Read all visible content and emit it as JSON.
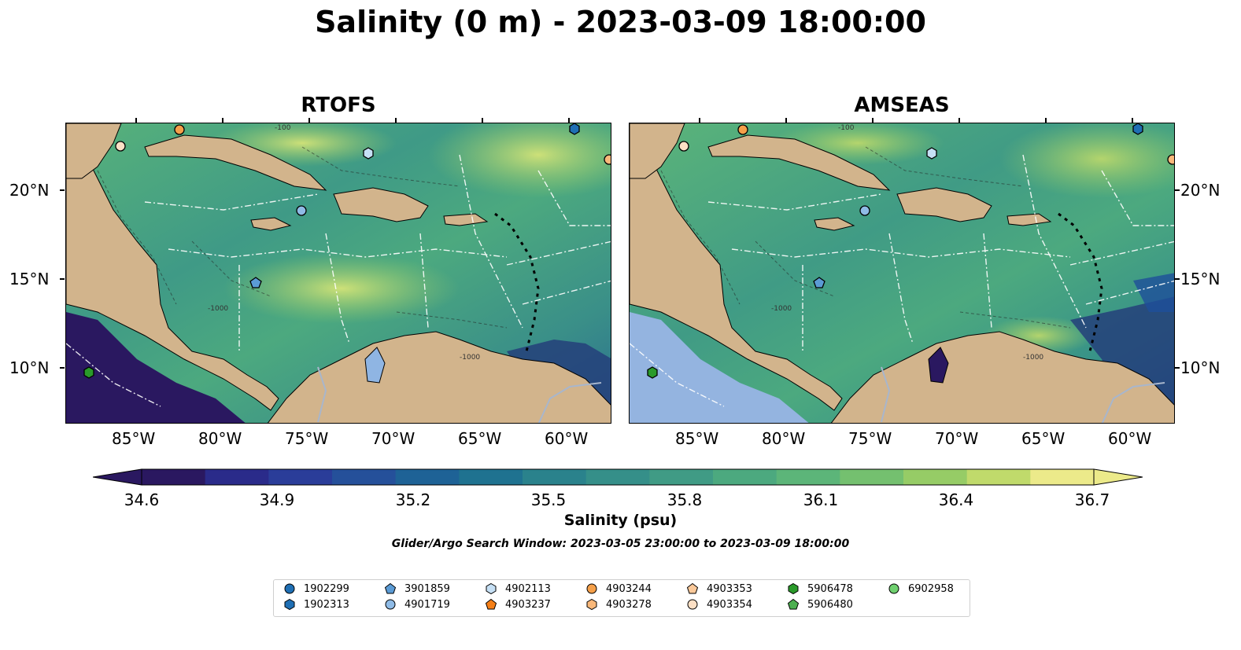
{
  "title": "Salinity (0 m) - 2023-03-09 18:00:00",
  "panels": [
    {
      "title": "RTOFS"
    },
    {
      "title": "AMSEAS"
    }
  ],
  "map": {
    "lon_range": [
      -89,
      -58
    ],
    "lat_range": [
      7,
      24
    ],
    "x_ticks": [
      "85°W",
      "80°W",
      "75°W",
      "70°W",
      "65°W",
      "60°W"
    ],
    "y_ticks": [
      "20°N",
      "15°N",
      "10°N"
    ],
    "land_color": "#d2b48c",
    "river_color": "#a8b6cc",
    "contour_labels": [
      "-100",
      "-1000"
    ]
  },
  "colorbar": {
    "label": "Salinity (psu)",
    "min": 34.6,
    "max": 36.7,
    "ticks": [
      "34.6",
      "34.9",
      "35.2",
      "35.5",
      "35.8",
      "36.1",
      "36.4",
      "36.7"
    ],
    "colors": [
      "#2a1860",
      "#2a2b8a",
      "#2a3d99",
      "#25509a",
      "#1e6296",
      "#1f7290",
      "#2a828c",
      "#358f89",
      "#409b85",
      "#4ca97f",
      "#5cb579",
      "#74c06f",
      "#96cc66",
      "#c0da6b",
      "#ecea8a"
    ]
  },
  "search_window": "Glider/Argo Search Window: 2023-03-05 23:00:00 to 2023-03-09 18:00:00",
  "legend": {
    "items": [
      {
        "id": "1902299",
        "shape": "circle",
        "color": "#1f6fb4"
      },
      {
        "id": "1902313",
        "shape": "hexagon",
        "color": "#1f6fb4"
      },
      {
        "id": "3901859",
        "shape": "pentagon",
        "color": "#5b9bd5"
      },
      {
        "id": "4901719",
        "shape": "circle",
        "color": "#8fbbe6"
      },
      {
        "id": "4902113",
        "shape": "hexagon",
        "color": "#c6e0f5"
      },
      {
        "id": "4903237",
        "shape": "pentagon",
        "color": "#f57f17"
      },
      {
        "id": "4903244",
        "shape": "circle",
        "color": "#f5a04a"
      },
      {
        "id": "4903278",
        "shape": "hexagon",
        "color": "#f9b87a"
      },
      {
        "id": "4903353",
        "shape": "pentagon",
        "color": "#fbc99a"
      },
      {
        "id": "4903354",
        "shape": "circle",
        "color": "#fde0c5"
      },
      {
        "id": "5906478",
        "shape": "hexagon",
        "color": "#2a9a2a"
      },
      {
        "id": "5906480",
        "shape": "pentagon",
        "color": "#4caf50"
      },
      {
        "id": "6902958",
        "shape": "circle",
        "color": "#6fd06f"
      }
    ]
  }
}
